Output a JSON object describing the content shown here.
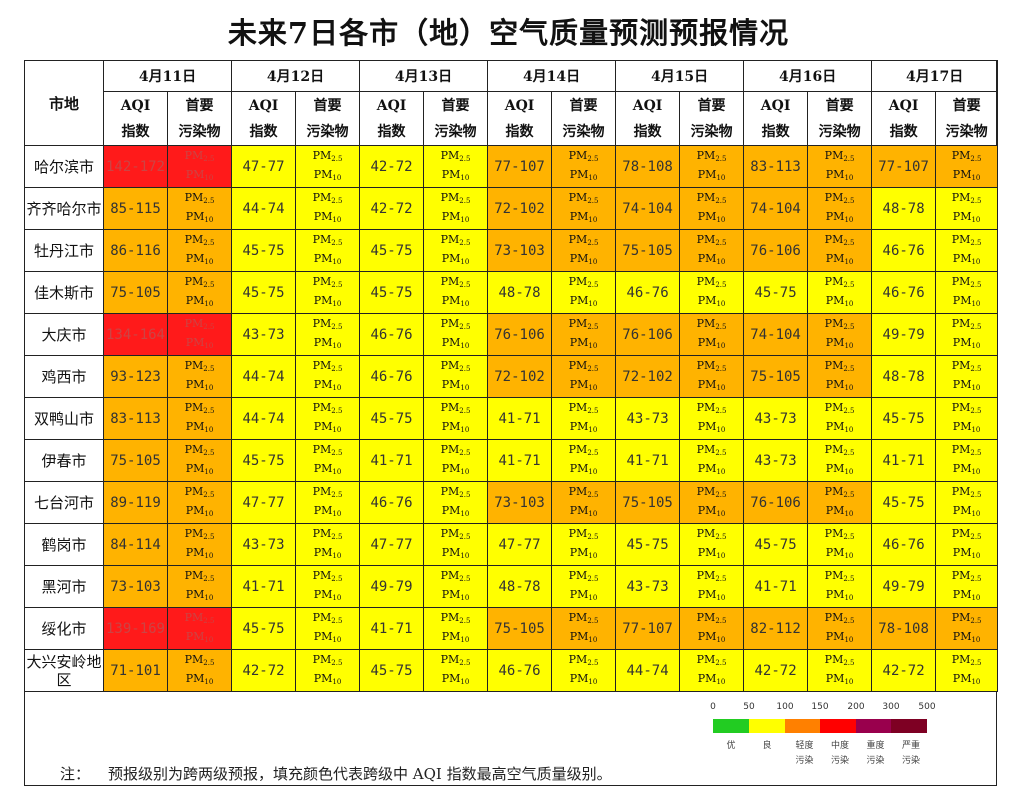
{
  "title": "未来7日各市（地）空气质量预测预报情况",
  "header": {
    "city_col": "市地",
    "aqi_label_1": "AQI",
    "aqi_label_2": "指数",
    "pol_label_1": "首要",
    "pol_label_2": "污染物",
    "dates": [
      "4月11日",
      "4月12日",
      "4月13日",
      "4月14日",
      "4月15日",
      "4月16日",
      "4月17日"
    ]
  },
  "pollutants": {
    "pm25": "PM",
    "pm25_sub": "2.5",
    "pm10": "PM",
    "pm10_sub": "10"
  },
  "level_colors": {
    "good": "#ffff00",
    "light": "#ffb300",
    "moderate": "#ff1a1a"
  },
  "rows": [
    {
      "city": "哈尔滨市",
      "aqi": [
        "142-172",
        "47-77",
        "42-72",
        "77-107",
        "78-108",
        "83-113",
        "77-107"
      ],
      "level": [
        "moderate",
        "good",
        "good",
        "light",
        "light",
        "light",
        "light"
      ]
    },
    {
      "city": "齐齐哈尔市",
      "aqi": [
        "85-115",
        "44-74",
        "42-72",
        "72-102",
        "74-104",
        "74-104",
        "48-78"
      ],
      "level": [
        "light",
        "good",
        "good",
        "light",
        "light",
        "light",
        "good"
      ]
    },
    {
      "city": "牡丹江市",
      "aqi": [
        "86-116",
        "45-75",
        "45-75",
        "73-103",
        "75-105",
        "76-106",
        "46-76"
      ],
      "level": [
        "light",
        "good",
        "good",
        "light",
        "light",
        "light",
        "good"
      ]
    },
    {
      "city": "佳木斯市",
      "aqi": [
        "75-105",
        "45-75",
        "45-75",
        "48-78",
        "46-76",
        "45-75",
        "46-76"
      ],
      "level": [
        "light",
        "good",
        "good",
        "good",
        "good",
        "good",
        "good"
      ]
    },
    {
      "city": "大庆市",
      "aqi": [
        "134-164",
        "43-73",
        "46-76",
        "76-106",
        "76-106",
        "74-104",
        "49-79"
      ],
      "level": [
        "moderate",
        "good",
        "good",
        "light",
        "light",
        "light",
        "good"
      ]
    },
    {
      "city": "鸡西市",
      "aqi": [
        "93-123",
        "44-74",
        "46-76",
        "72-102",
        "72-102",
        "75-105",
        "48-78"
      ],
      "level": [
        "light",
        "good",
        "good",
        "light",
        "light",
        "light",
        "good"
      ]
    },
    {
      "city": "双鸭山市",
      "aqi": [
        "83-113",
        "44-74",
        "45-75",
        "41-71",
        "43-73",
        "43-73",
        "45-75"
      ],
      "level": [
        "light",
        "good",
        "good",
        "good",
        "good",
        "good",
        "good"
      ]
    },
    {
      "city": "伊春市",
      "aqi": [
        "75-105",
        "45-75",
        "41-71",
        "41-71",
        "41-71",
        "43-73",
        "41-71"
      ],
      "level": [
        "light",
        "good",
        "good",
        "good",
        "good",
        "good",
        "good"
      ]
    },
    {
      "city": "七台河市",
      "aqi": [
        "89-119",
        "47-77",
        "46-76",
        "73-103",
        "75-105",
        "76-106",
        "45-75"
      ],
      "level": [
        "light",
        "good",
        "good",
        "light",
        "light",
        "light",
        "good"
      ]
    },
    {
      "city": "鹤岗市",
      "aqi": [
        "84-114",
        "43-73",
        "47-77",
        "47-77",
        "45-75",
        "45-75",
        "46-76"
      ],
      "level": [
        "light",
        "good",
        "good",
        "good",
        "good",
        "good",
        "good"
      ]
    },
    {
      "city": "黑河市",
      "aqi": [
        "73-103",
        "41-71",
        "49-79",
        "48-78",
        "43-73",
        "41-71",
        "49-79"
      ],
      "level": [
        "light",
        "good",
        "good",
        "good",
        "good",
        "good",
        "good"
      ]
    },
    {
      "city": "绥化市",
      "aqi": [
        "139-169",
        "45-75",
        "41-71",
        "75-105",
        "77-107",
        "82-112",
        "78-108"
      ],
      "level": [
        "moderate",
        "good",
        "good",
        "light",
        "light",
        "light",
        "light"
      ]
    },
    {
      "city": "大兴安岭地区",
      "aqi": [
        "71-101",
        "42-72",
        "45-75",
        "46-76",
        "44-74",
        "42-72",
        "42-72"
      ],
      "level": [
        "light",
        "good",
        "good",
        "good",
        "good",
        "good",
        "good"
      ]
    }
  ],
  "legend": {
    "ticks": [
      "0",
      "50",
      "100",
      "150",
      "200",
      "300",
      "500"
    ],
    "segments": [
      {
        "color": "#22cc22",
        "label_1": "优",
        "label_2": ""
      },
      {
        "color": "#ffff00",
        "label_1": "良",
        "label_2": ""
      },
      {
        "color": "#ff8000",
        "label_1": "轻度",
        "label_2": "污染"
      },
      {
        "color": "#ff0000",
        "label_1": "中度",
        "label_2": "污染"
      },
      {
        "color": "#99004d",
        "label_1": "重度",
        "label_2": "污染"
      },
      {
        "color": "#7e0023",
        "label_1": "严重",
        "label_2": "污染"
      }
    ]
  },
  "note": {
    "tag": "注：",
    "text": "预报级别为跨两级预报，填充颜色代表跨级中 AQI 指数最高空气质量级别。"
  }
}
